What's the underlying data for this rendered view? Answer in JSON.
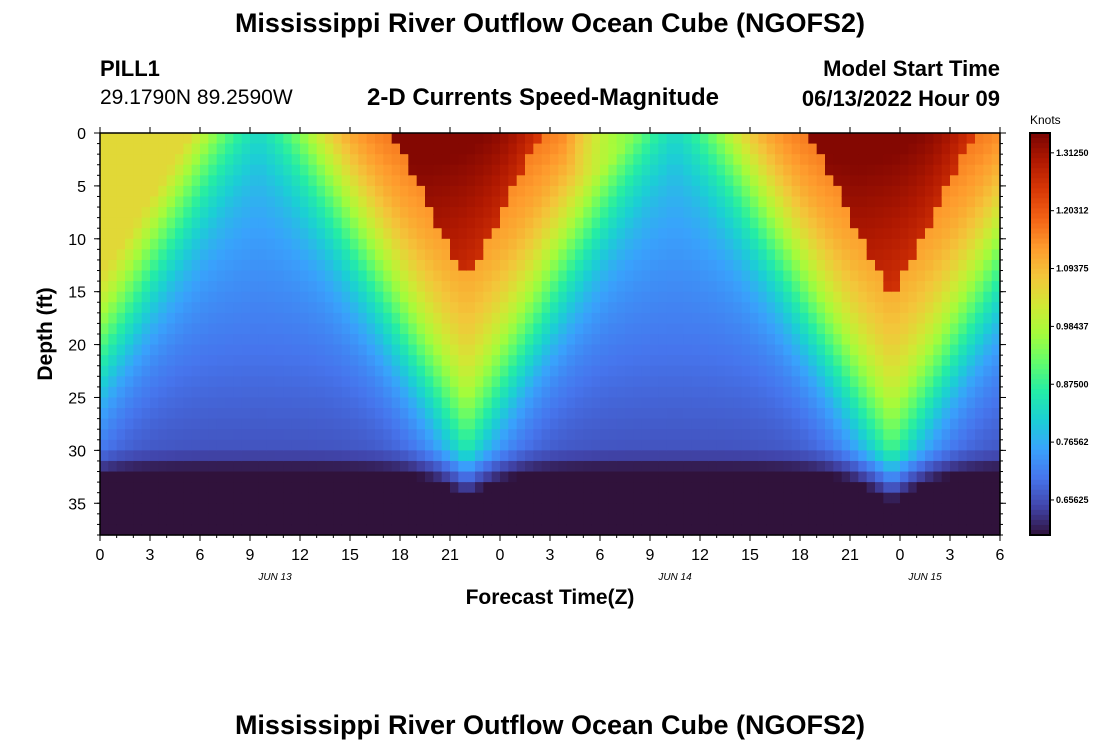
{
  "page": {
    "title": "Mississippi River Outflow Ocean Cube (NGOFS2)",
    "bottom_title": "Mississippi River Outflow Ocean Cube (NGOFS2)",
    "station": "PILL1",
    "coords": "29.1790N  89.2590W",
    "plot_title": "2-D Currents Speed-Magnitude",
    "start_label": "Model Start Time",
    "start_value": "06/13/2022 Hour 09"
  },
  "chart_data": {
    "type": "heatmap",
    "title": "2-D Currents Speed-Magnitude",
    "xlabel": "Forecast Time(Z)",
    "ylabel": "Depth (ft)",
    "x_ticks": [
      "0",
      "3",
      "6",
      "9",
      "12",
      "15",
      "18",
      "21",
      "0",
      "3",
      "6",
      "9",
      "12",
      "15",
      "18",
      "21",
      "0",
      "3",
      "6"
    ],
    "date_labels": [
      "JUN 13",
      "JUN 14",
      "JUN 15"
    ],
    "y_ticks": [
      "0",
      "5",
      "10",
      "15",
      "20",
      "25",
      "30",
      "35"
    ],
    "ylim": [
      0,
      38
    ],
    "x_range_hours": [
      0,
      54
    ],
    "colorbar": {
      "unit_label": "Knots",
      "tick_labels": [
        "1.31250",
        "1.20312",
        "1.09375",
        "0.98437",
        "0.87500",
        "0.76562",
        "0.65625"
      ],
      "range": [
        0.59,
        1.35
      ],
      "colors": [
        "#30123b",
        "#4145ab",
        "#4675ed",
        "#39a2fc",
        "#1bcfd4",
        "#24eca6",
        "#61fc6c",
        "#a4fc3b",
        "#d1e834",
        "#f3c63a",
        "#fe9b2d",
        "#f36315",
        "#d93806",
        "#b11901",
        "#7a0402"
      ]
    },
    "pattern": {
      "description_values": {
        "high_speed_centers_hours": [
          19.5,
          45.5
        ],
        "low_speed_centers_hours": [
          9.5,
          34.5
        ],
        "peak_speed": 1.33,
        "bottom_min_speed": 0.6
      }
    }
  }
}
